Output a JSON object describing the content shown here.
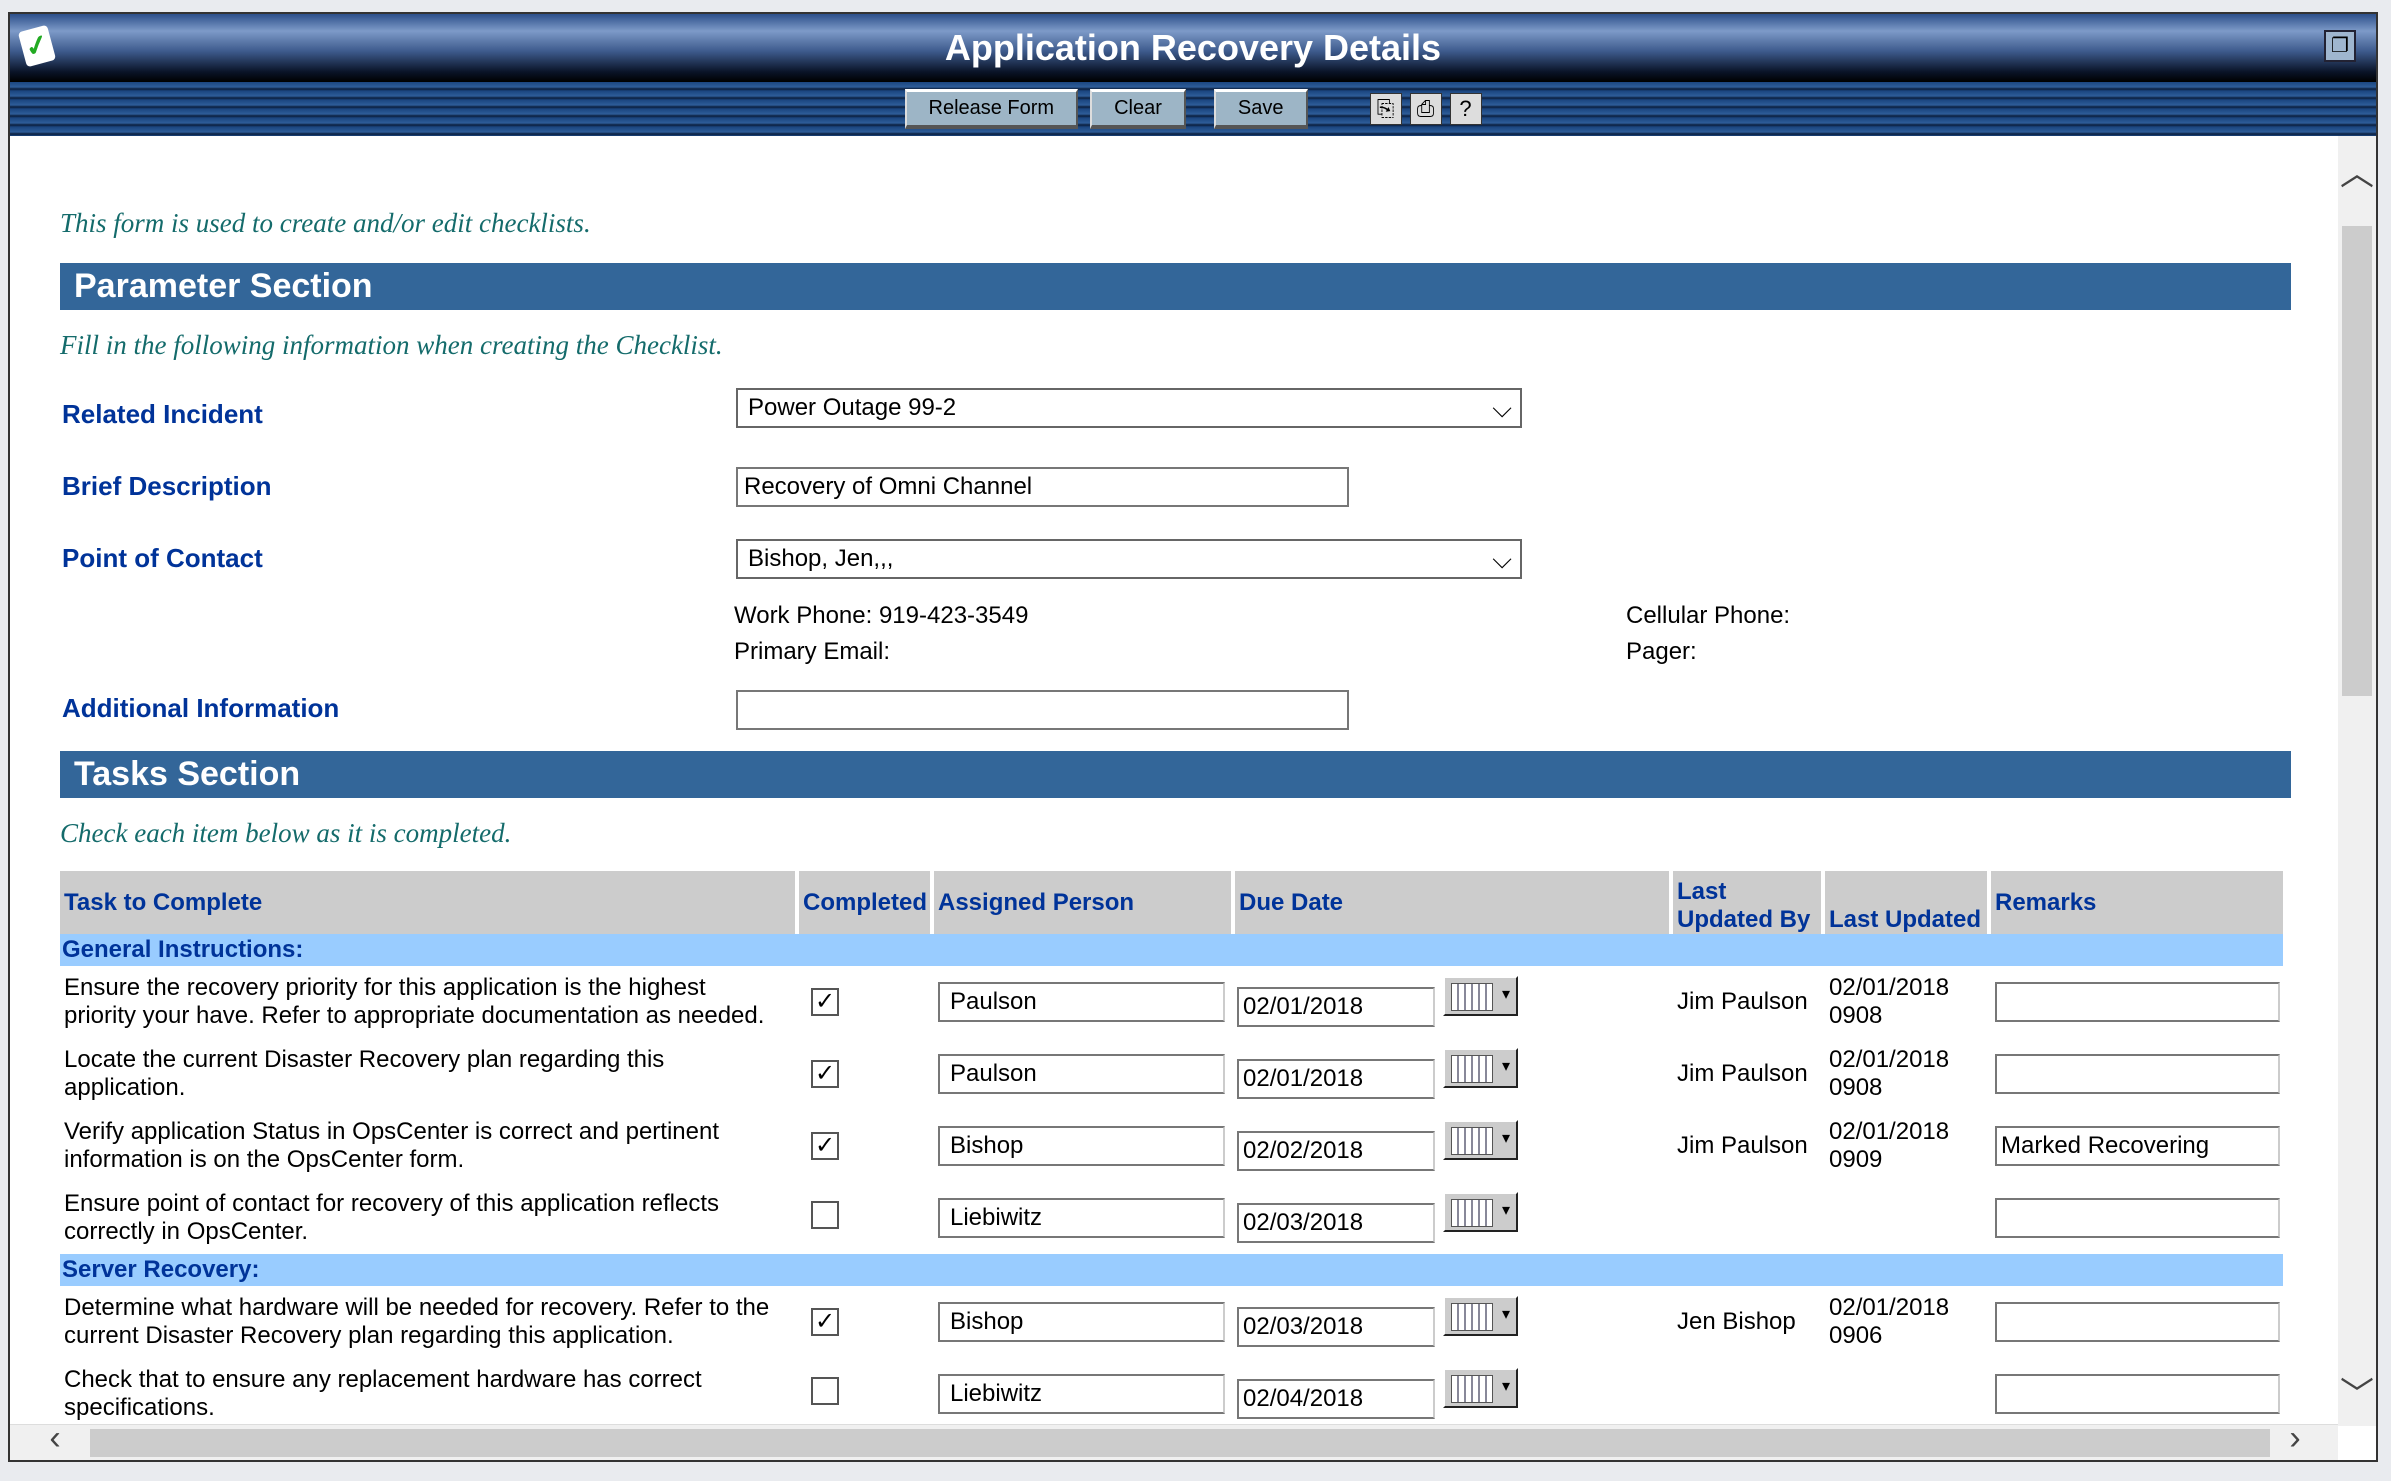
{
  "window": {
    "title": "Application Recovery Details",
    "restore_icon": "restore-icon",
    "app_icon": "checklist-icon"
  },
  "toolbar": {
    "release_form": "Release Form",
    "clear": "Clear",
    "save": "Save",
    "icons": [
      "copy-icon",
      "print-icon",
      "help-icon"
    ]
  },
  "intro": "This form is used to create and/or edit checklists.",
  "parameter_section": {
    "title": "Parameter Section",
    "hint": "Fill in the following information when creating the Checklist.",
    "related_incident": {
      "label": "Related Incident",
      "value": "Power Outage 99-2"
    },
    "brief_description": {
      "label": "Brief Description",
      "value": "Recovery of Omni Channel"
    },
    "point_of_contact": {
      "label": "Point of Contact",
      "value": "Bishop, Jen,,,"
    },
    "work_phone": "Work Phone: 919-423-3549",
    "primary_email": "Primary Email:",
    "cellular_phone": "Cellular Phone:",
    "pager": "Pager:",
    "additional_information": {
      "label": "Additional Information",
      "value": ""
    }
  },
  "tasks_section": {
    "title": "Tasks Section",
    "hint": "Check each item below as it is completed.",
    "columns": [
      "Task to Complete",
      "Completed",
      "Assigned Person",
      "Due Date",
      "Last Updated By",
      "Last Updated",
      "Remarks"
    ],
    "groups": [
      {
        "name": "General Instructions:",
        "tasks": [
          {
            "task": "Ensure the recovery priority for this application is the highest priority your have. Refer to appropriate documentation as needed.",
            "completed": true,
            "assigned": "Paulson",
            "due": "02/01/2018",
            "updated_by": "Jim Paulson",
            "updated": "02/01/2018 0908",
            "remarks": ""
          },
          {
            "task": "Locate the current Disaster Recovery plan regarding this application.",
            "completed": true,
            "assigned": "Paulson",
            "due": "02/01/2018",
            "updated_by": "Jim Paulson",
            "updated": "02/01/2018 0908",
            "remarks": ""
          },
          {
            "task": "Verify application Status in OpsCenter is correct and pertinent information is on the OpsCenter form.",
            "completed": true,
            "assigned": "Bishop",
            "due": "02/02/2018",
            "updated_by": "Jim Paulson",
            "updated": "02/01/2018 0909",
            "remarks": "Marked Recovering"
          },
          {
            "task": "Ensure point of contact for recovery of this application reflects correctly in OpsCenter.",
            "completed": false,
            "assigned": "Liebiwitz",
            "due": "02/03/2018",
            "updated_by": "",
            "updated": "",
            "remarks": ""
          }
        ]
      },
      {
        "name": "Server Recovery:",
        "tasks": [
          {
            "task": "Determine what hardware will be needed for recovery. Refer to the current Disaster Recovery plan regarding this application.",
            "completed": true,
            "assigned": "Bishop",
            "due": "02/03/2018",
            "updated_by": "Jen Bishop",
            "updated": "02/01/2018 0906",
            "remarks": ""
          },
          {
            "task": "Check that to ensure any replacement hardware has correct specifications.",
            "completed": false,
            "assigned": "Liebiwitz",
            "due": "02/04/2018",
            "updated_by": "",
            "updated": "",
            "remarks": ""
          }
        ]
      }
    ]
  }
}
